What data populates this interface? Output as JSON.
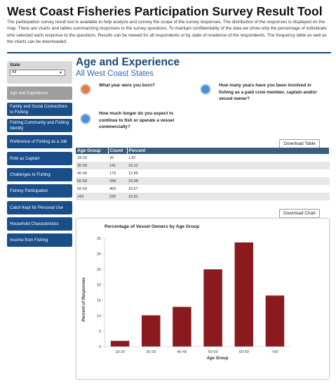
{
  "header": {
    "title": "West Coast Fisheries Participation Survey Result Tool",
    "intro": "The participation survey result tool is available to help analyze and convey the scope of the survey responses. The distribution of the responses is displayed on the map. There are charts and tables summarizing responses to the survey questions. To maintain confidentiality of the data we show only the percentage of individuals who selected each response to the questions. Results can be viewed for all respondents or by state of residence of the respondents. The frequency table as well as the charts can be downloaded."
  },
  "sidebar": {
    "state_label": "State",
    "state_value": "All",
    "items": [
      {
        "label": "Age and Experience",
        "active": true
      },
      {
        "label": "Family and Social Connections to Fishing",
        "active": false
      },
      {
        "label": "Fishing Community and Fishing Identity",
        "active": false
      },
      {
        "label": "Preference of Fishing as a Job",
        "active": false
      },
      {
        "label": "Role as Captain",
        "active": false
      },
      {
        "label": "Challenges to Fishing",
        "active": false
      },
      {
        "label": "Fishery Participation",
        "active": false
      },
      {
        "label": "Catch Kept for Personal Use",
        "active": false
      },
      {
        "label": "Household Characteristics",
        "active": false
      },
      {
        "label": "Income from Fishing",
        "active": false
      }
    ]
  },
  "main": {
    "title": "Age and Experience",
    "subtitle": "All West Coast States",
    "questions": [
      {
        "text": "What year were you born?",
        "color": "#f07a3a"
      },
      {
        "text": "How many years have you been involved in fishing as a paid crew member, captain and/or vessel owner?",
        "color": "#4a90d9"
      },
      {
        "text": "How much longer do you expect to continue to fish or operate a vessel commercially?",
        "color": "#4a90d9"
      }
    ],
    "download_table_label": "Download Table",
    "download_chart_label": "Download Chart",
    "table": {
      "headers": [
        "Age Group",
        "Count",
        "Percent"
      ],
      "rows": [
        [
          "18-29",
          "26",
          "1.87"
        ],
        [
          "30-39",
          "141",
          "10.12"
        ],
        [
          "40-49",
          "179",
          "12.85"
        ],
        [
          "50-59",
          "348",
          "24.98"
        ],
        [
          "60-69",
          "469",
          "33.67"
        ],
        [
          ">69",
          "230",
          "16.51"
        ]
      ]
    }
  },
  "chart_data": {
    "type": "bar",
    "title": "Percentage of Vessel Owners by Age Group",
    "xlabel": "Age Group",
    "ylabel": "Percent of Responses",
    "categories": [
      "18-29",
      "30-39",
      "40-49",
      "50-59",
      "60-69",
      ">69"
    ],
    "values": [
      1.87,
      10.12,
      12.85,
      24.98,
      33.67,
      16.51
    ],
    "ylim": [
      0,
      35
    ],
    "yticks": [
      0,
      5,
      10,
      15,
      20,
      25,
      30,
      35
    ],
    "grid": false,
    "bar_color": "#8b1a1f"
  }
}
